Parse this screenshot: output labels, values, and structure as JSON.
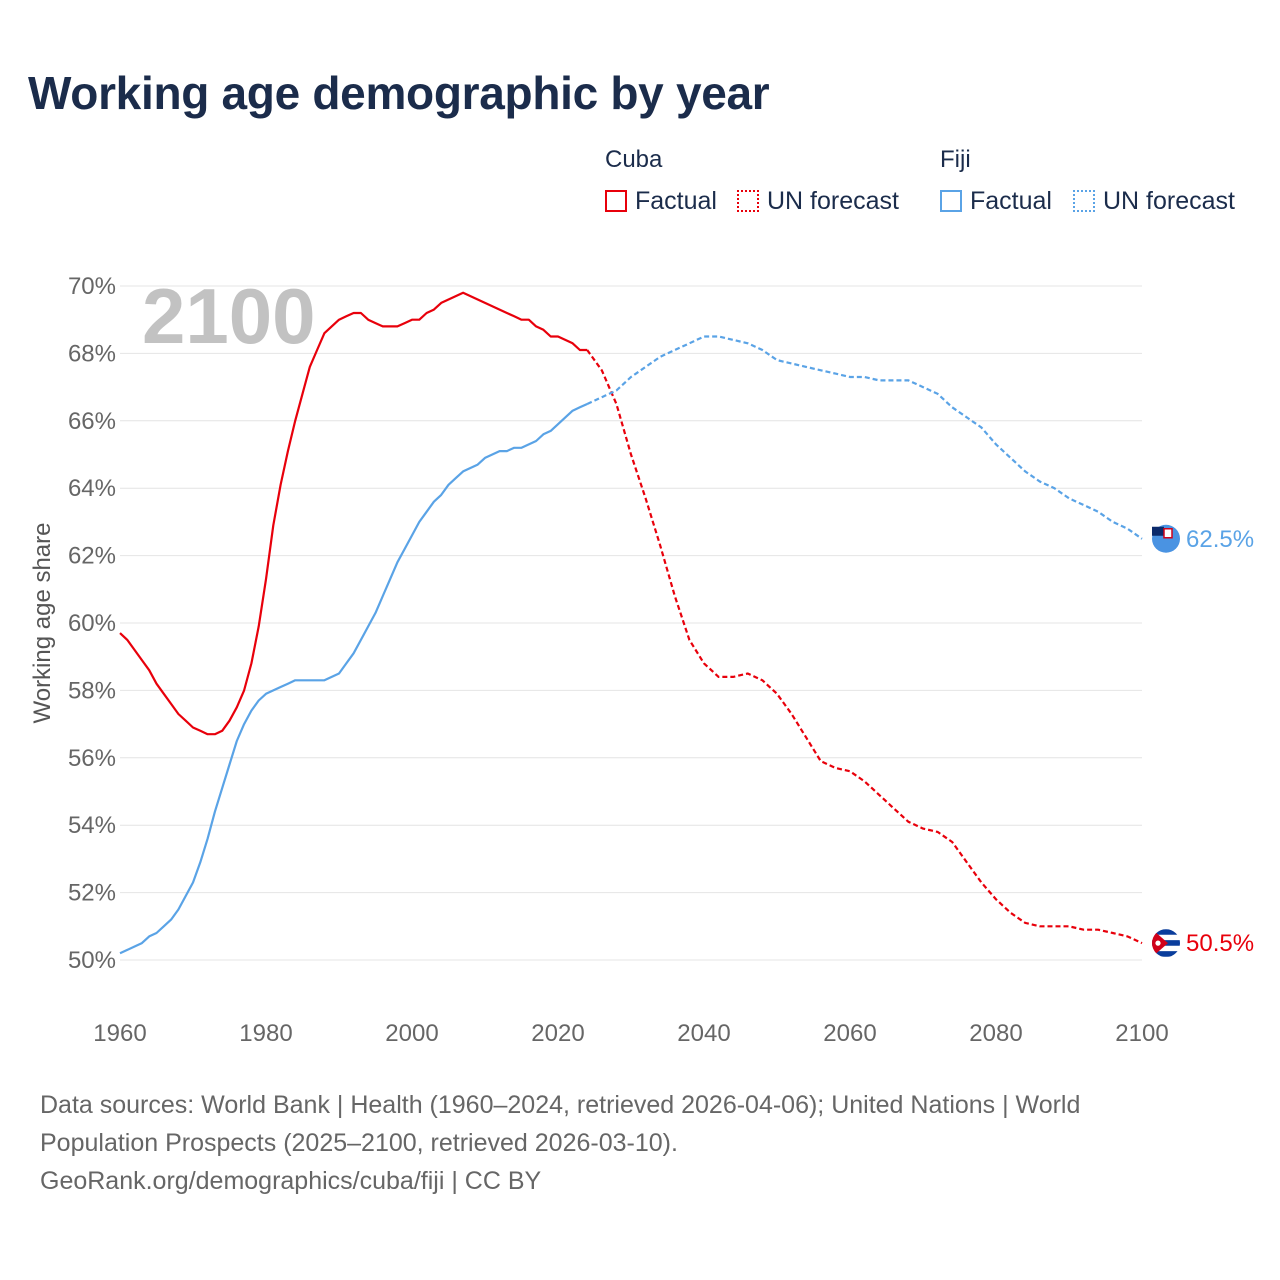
{
  "title": "Working age demographic by year",
  "legend": {
    "groups": [
      {
        "name": "Cuba",
        "factual": "Factual",
        "forecast": "UN forecast"
      },
      {
        "name": "Fiji",
        "factual": "Factual",
        "forecast": "UN forecast"
      }
    ]
  },
  "footer": {
    "line1": "Data sources: World Bank | Health (1960–2024, retrieved 2026-04-06); United Nations | World",
    "line2": "Population Prospects (2025–2100, retrieved 2026-03-10).",
    "line3": "GeoRank.org/demographics/cuba/fiji | CC BY"
  },
  "chart_data": {
    "type": "line",
    "title": "Working age demographic by year",
    "ylabel": "Working age share",
    "xlabel": "",
    "watermark_year": "2100",
    "xlim": [
      1960,
      2100
    ],
    "ylim": [
      50,
      70
    ],
    "x_ticks": [
      1960,
      1980,
      2000,
      2020,
      2040,
      2060,
      2080,
      2100
    ],
    "y_ticks": [
      50,
      52,
      54,
      56,
      58,
      60,
      62,
      64,
      66,
      68,
      70
    ],
    "y_tick_labels": [
      "50%",
      "52%",
      "54%",
      "56%",
      "58%",
      "60%",
      "62%",
      "64%",
      "66%",
      "68%",
      "70%"
    ],
    "x_tick_labels": [
      "1960",
      "1980",
      "2000",
      "2020",
      "2040",
      "2060",
      "2080",
      "2100"
    ],
    "series": [
      {
        "name": "Cuba",
        "color": "#e8000b",
        "end_label": "50.5%",
        "factual": {
          "x": [
            1960,
            1961,
            1962,
            1963,
            1964,
            1965,
            1966,
            1967,
            1968,
            1969,
            1970,
            1971,
            1972,
            1973,
            1974,
            1975,
            1976,
            1977,
            1978,
            1979,
            1980,
            1981,
            1982,
            1983,
            1984,
            1985,
            1986,
            1987,
            1988,
            1989,
            1990,
            1991,
            1992,
            1993,
            1994,
            1995,
            1996,
            1997,
            1998,
            1999,
            2000,
            2001,
            2002,
            2003,
            2004,
            2005,
            2006,
            2007,
            2008,
            2009,
            2010,
            2011,
            2012,
            2013,
            2014,
            2015,
            2016,
            2017,
            2018,
            2019,
            2020,
            2021,
            2022,
            2023,
            2024
          ],
          "y": [
            59.7,
            59.5,
            59.2,
            58.9,
            58.6,
            58.2,
            57.9,
            57.6,
            57.3,
            57.1,
            56.9,
            56.8,
            56.7,
            56.7,
            56.8,
            57.1,
            57.5,
            58.0,
            58.8,
            59.9,
            61.3,
            62.9,
            64.1,
            65.1,
            66.0,
            66.8,
            67.6,
            68.1,
            68.6,
            68.8,
            69.0,
            69.1,
            69.2,
            69.2,
            69.0,
            68.9,
            68.8,
            68.8,
            68.8,
            68.9,
            69.0,
            69.0,
            69.2,
            69.3,
            69.5,
            69.6,
            69.7,
            69.8,
            69.7,
            69.6,
            69.5,
            69.4,
            69.3,
            69.2,
            69.1,
            69.0,
            69.0,
            68.8,
            68.7,
            68.5,
            68.5,
            68.4,
            68.3,
            68.1,
            68.1
          ]
        },
        "forecast": {
          "x": [
            2024,
            2026,
            2028,
            2030,
            2032,
            2034,
            2036,
            2038,
            2040,
            2042,
            2044,
            2046,
            2048,
            2050,
            2052,
            2054,
            2056,
            2058,
            2060,
            2062,
            2064,
            2066,
            2068,
            2070,
            2072,
            2074,
            2076,
            2078,
            2080,
            2082,
            2084,
            2086,
            2088,
            2090,
            2092,
            2094,
            2096,
            2098,
            2100
          ],
          "y": [
            68.1,
            67.5,
            66.5,
            65.0,
            63.7,
            62.3,
            60.8,
            59.5,
            58.8,
            58.4,
            58.4,
            58.5,
            58.3,
            57.9,
            57.3,
            56.6,
            55.9,
            55.7,
            55.6,
            55.3,
            54.9,
            54.5,
            54.1,
            53.9,
            53.8,
            53.5,
            52.9,
            52.3,
            51.8,
            51.4,
            51.1,
            51.0,
            51.0,
            51.0,
            50.9,
            50.9,
            50.8,
            50.7,
            50.5
          ]
        }
      },
      {
        "name": "Fiji",
        "color": "#5aa3e6",
        "end_label": "62.5%",
        "factual": {
          "x": [
            1960,
            1961,
            1962,
            1963,
            1964,
            1965,
            1966,
            1967,
            1968,
            1969,
            1970,
            1971,
            1972,
            1973,
            1974,
            1975,
            1976,
            1977,
            1978,
            1979,
            1980,
            1981,
            1982,
            1983,
            1984,
            1985,
            1986,
            1987,
            1988,
            1989,
            1990,
            1991,
            1992,
            1993,
            1994,
            1995,
            1996,
            1997,
            1998,
            1999,
            2000,
            2001,
            2002,
            2003,
            2004,
            2005,
            2006,
            2007,
            2008,
            2009,
            2010,
            2011,
            2012,
            2013,
            2014,
            2015,
            2016,
            2017,
            2018,
            2019,
            2020,
            2021,
            2022,
            2023,
            2024
          ],
          "y": [
            50.2,
            50.3,
            50.4,
            50.5,
            50.7,
            50.8,
            51.0,
            51.2,
            51.5,
            51.9,
            52.3,
            52.9,
            53.6,
            54.4,
            55.1,
            55.8,
            56.5,
            57.0,
            57.4,
            57.7,
            57.9,
            58.0,
            58.1,
            58.2,
            58.3,
            58.3,
            58.3,
            58.3,
            58.3,
            58.4,
            58.5,
            58.8,
            59.1,
            59.5,
            59.9,
            60.3,
            60.8,
            61.3,
            61.8,
            62.2,
            62.6,
            63.0,
            63.3,
            63.6,
            63.8,
            64.1,
            64.3,
            64.5,
            64.6,
            64.7,
            64.9,
            65.0,
            65.1,
            65.1,
            65.2,
            65.2,
            65.3,
            65.4,
            65.6,
            65.7,
            65.9,
            66.1,
            66.3,
            66.4,
            66.5
          ]
        },
        "forecast": {
          "x": [
            2024,
            2026,
            2028,
            2030,
            2032,
            2034,
            2036,
            2038,
            2040,
            2042,
            2044,
            2046,
            2048,
            2050,
            2052,
            2054,
            2056,
            2058,
            2060,
            2062,
            2064,
            2066,
            2068,
            2070,
            2072,
            2074,
            2076,
            2078,
            2080,
            2082,
            2084,
            2086,
            2088,
            2090,
            2092,
            2094,
            2096,
            2098,
            2100
          ],
          "y": [
            66.5,
            66.7,
            66.9,
            67.3,
            67.6,
            67.9,
            68.1,
            68.3,
            68.5,
            68.5,
            68.4,
            68.3,
            68.1,
            67.8,
            67.7,
            67.6,
            67.5,
            67.4,
            67.3,
            67.3,
            67.2,
            67.2,
            67.2,
            67.0,
            66.8,
            66.4,
            66.1,
            65.8,
            65.3,
            64.9,
            64.5,
            64.2,
            64.0,
            63.7,
            63.5,
            63.3,
            63.0,
            62.8,
            62.5
          ]
        }
      }
    ]
  }
}
